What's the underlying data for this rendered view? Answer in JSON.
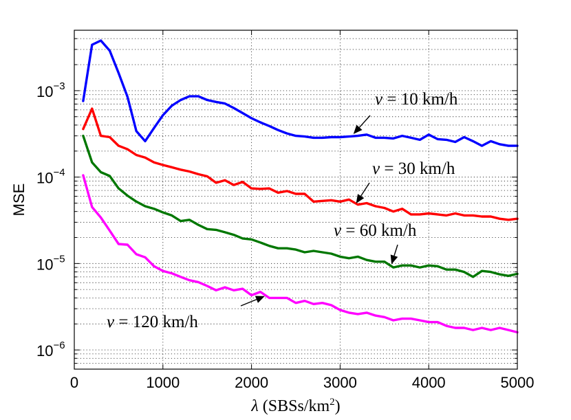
{
  "chart_data": {
    "type": "line",
    "title": "",
    "xlabel": "λ (SBSs/km²)",
    "xlabel_parts": {
      "symbol": "λ",
      "units_open": " (SBSs/km",
      "superscript": "2",
      "units_close": ")"
    },
    "ylabel": "MSE",
    "xscale": "linear",
    "yscale": "log",
    "xlim": [
      0,
      5000
    ],
    "ylim": [
      6e-07,
      0.005
    ],
    "grid": true,
    "x_ticks": [
      0,
      1000,
      2000,
      3000,
      4000,
      5000
    ],
    "x_tick_labels": [
      "0",
      "1000",
      "2000",
      "3000",
      "4000",
      "5000"
    ],
    "y_ticks": [
      {
        "value": 1e-06,
        "base": "10",
        "exp": "−6"
      },
      {
        "value": 1e-05,
        "base": "10",
        "exp": "−5"
      },
      {
        "value": 0.0001,
        "base": "10",
        "exp": "−4"
      },
      {
        "value": 0.001,
        "base": "10",
        "exp": "−3"
      }
    ],
    "x": [
      100,
      200,
      300,
      400,
      500,
      600,
      700,
      800,
      900,
      1000,
      1100,
      1200,
      1300,
      1400,
      1500,
      1600,
      1700,
      1800,
      1900,
      2000,
      2100,
      2200,
      2300,
      2400,
      2500,
      2600,
      2700,
      2800,
      2900,
      3000,
      3100,
      3200,
      3300,
      3400,
      3500,
      3600,
      3700,
      3800,
      3900,
      4000,
      4100,
      4200,
      4300,
      4400,
      4500,
      4600,
      4700,
      4800,
      4900,
      5000
    ],
    "series": [
      {
        "name": "v = 10 km/h",
        "color": "#0000ff",
        "values": [
          0.00076,
          0.0034,
          0.0038,
          0.0029,
          0.0016,
          0.00085,
          0.00034,
          0.00026,
          0.00037,
          0.00052,
          0.00067,
          0.00078,
          0.00086,
          0.00086,
          0.00078,
          0.00074,
          0.00071,
          0.00063,
          0.00055,
          0.00048,
          0.00043,
          0.00039,
          0.00035,
          0.00032,
          0.0003,
          0.000295,
          0.000285,
          0.000285,
          0.00029,
          0.00029,
          0.000295,
          0.0003,
          0.00031,
          0.000285,
          0.000285,
          0.00028,
          0.0003,
          0.000285,
          0.00027,
          0.00031,
          0.000275,
          0.00027,
          0.000255,
          0.00029,
          0.00026,
          0.00023,
          0.00026,
          0.00024,
          0.00023,
          0.00023
        ]
      },
      {
        "name": "v = 30 km/h",
        "color": "#ff0000",
        "values": [
          0.00036,
          0.00062,
          0.0003,
          0.00029,
          0.00023,
          0.00021,
          0.00018,
          0.000168,
          0.000148,
          0.000138,
          0.00013,
          0.000122,
          0.000116,
          0.000108,
          0.000102,
          8.6e-05,
          9.2e-05,
          8.1e-05,
          8.8e-05,
          7.4e-05,
          7.3e-05,
          7.4e-05,
          6.6e-05,
          6.9e-05,
          6.4e-05,
          6.4e-05,
          5.2e-05,
          5.3e-05,
          5.4e-05,
          5.2e-05,
          5.5e-05,
          4.8e-05,
          5e-05,
          4.6e-05,
          4.4e-05,
          4e-05,
          4.3e-05,
          3.7e-05,
          3.7e-05,
          3.8e-05,
          3.7e-05,
          3.6e-05,
          3.8e-05,
          3.6e-05,
          3.6e-05,
          3.5e-05,
          3.5e-05,
          3.3e-05,
          3.2e-05,
          3.3e-05
        ]
      },
      {
        "name": "v = 60 km/h",
        "color": "#007700",
        "values": [
          0.0003,
          0.000148,
          0.000114,
          0.000103,
          7.4e-05,
          6.1e-05,
          5.2e-05,
          4.6e-05,
          4.3e-05,
          3.9e-05,
          3.6e-05,
          3.1e-05,
          3.2e-05,
          2.8e-05,
          2.5e-05,
          2.45e-05,
          2.3e-05,
          2.15e-05,
          1.95e-05,
          1.9e-05,
          1.75e-05,
          1.6e-05,
          1.5e-05,
          1.5e-05,
          1.45e-05,
          1.35e-05,
          1.4e-05,
          1.35e-05,
          1.3e-05,
          1.2e-05,
          1.15e-05,
          1.2e-05,
          1.1e-05,
          1.05e-05,
          1.05e-05,
          9e-06,
          9.5e-06,
          9.5e-06,
          9e-06,
          9.5e-06,
          9.3e-06,
          8.5e-06,
          8.5e-06,
          8e-06,
          7e-06,
          8.2e-06,
          8e-06,
          7.5e-06,
          7.2e-06,
          7.6e-06
        ]
      },
      {
        "name": "v = 120 km/h",
        "color": "#ff00ff",
        "values": [
          0.000105,
          4.5e-05,
          3.4e-05,
          2.4e-05,
          1.68e-05,
          1.65e-05,
          1.28e-05,
          1.18e-05,
          9.3e-06,
          8.2e-06,
          7.7e-06,
          7e-06,
          6.4e-06,
          6.1e-06,
          5.5e-06,
          4.9e-06,
          5.3e-06,
          4.9e-06,
          5.1e-06,
          4.3e-06,
          4.7e-06,
          4e-06,
          4e-06,
          4e-06,
          3.5e-06,
          3.7e-06,
          3.4e-06,
          3.5e-06,
          3.3e-06,
          2.9e-06,
          2.7e-06,
          2.6e-06,
          2.7e-06,
          2.5e-06,
          2.4e-06,
          2.2e-06,
          2.3e-06,
          2.3e-06,
          2.2e-06,
          2.1e-06,
          2.1e-06,
          1.9e-06,
          1.8e-06,
          1.8e-06,
          1.7e-06,
          1.8e-06,
          1.7e-06,
          1.8e-06,
          1.7e-06,
          1.6e-06
        ]
      }
    ],
    "annotations": [
      {
        "text_prefix": "v",
        "text_suffix": " = 10 km/h",
        "series": "v = 10 km/h",
        "points_to": [
          3150,
          0.000315
        ]
      },
      {
        "text_prefix": "v",
        "text_suffix": " = 30 km/h",
        "series": "v = 30 km/h",
        "points_to": [
          3180,
          4.95e-05
        ]
      },
      {
        "text_prefix": "v",
        "text_suffix": " = 60 km/h",
        "series": "v = 60 km/h",
        "points_to": [
          3580,
          9.8e-06
        ]
      },
      {
        "text_prefix": "v",
        "text_suffix": " = 120 km/h",
        "series": "v = 120 km/h",
        "points_to": [
          2150,
          4.2e-06
        ]
      }
    ]
  }
}
